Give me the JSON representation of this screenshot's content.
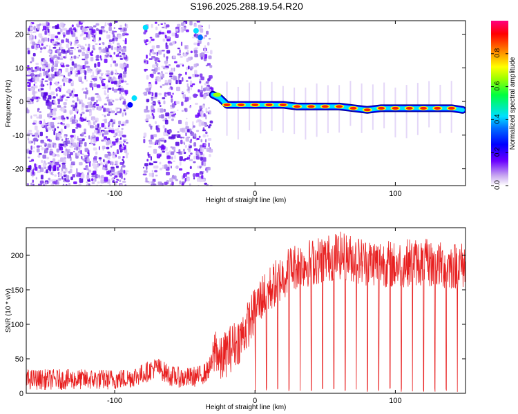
{
  "title": "S196.2025.288.19.54.R20",
  "chart_data": [
    {
      "type": "heatmap",
      "xlabel": "Height of straight line (km)",
      "ylabel": "Frequency (Hz)",
      "xlim": [
        -163,
        150
      ],
      "ylim": [
        -25,
        24
      ],
      "xticks": [
        -100,
        0,
        100
      ],
      "xtick_labels": [
        "-100",
        "0",
        "100"
      ],
      "yticks": [
        20,
        10,
        0,
        -10,
        -20
      ],
      "ytick_labels": [
        "20",
        "10",
        "0",
        "-10",
        "-20"
      ],
      "colorbar": {
        "label": "Normalized spectral amplitude",
        "range": [
          0,
          1
        ],
        "ticks": [
          0,
          0.2,
          0.4,
          0.6,
          0.8
        ],
        "tick_labels": [
          "0.0",
          "0.2",
          "0.4",
          "0.6",
          "0.8"
        ],
        "colors": [
          "#ffffff",
          "#c8a8f0",
          "#6a00ff",
          "#0000ff",
          "#00e0ff",
          "#00ff00",
          "#ffff00",
          "#ff6600",
          "#ff0000",
          "#ff0080"
        ]
      },
      "ridge": {
        "description": "dominant frequency track",
        "x": [
          -30,
          -25,
          -20,
          -10,
          0,
          10,
          20,
          30,
          40,
          50,
          60,
          70,
          80,
          90,
          100,
          110,
          120,
          130,
          140,
          148
        ],
        "y": [
          2,
          1,
          -1,
          -1,
          -1,
          -1,
          -1,
          -1.5,
          -1.5,
          -1.5,
          -1.5,
          -2,
          -2.5,
          -2,
          -2,
          -2,
          -2,
          -2,
          -2,
          -2.5
        ]
      }
    },
    {
      "type": "line",
      "xlabel": "Height of straight line (km)",
      "ylabel": "SNR (10 * v/v)",
      "xlim": [
        -163,
        150
      ],
      "ylim": [
        0,
        240
      ],
      "xticks": [
        -100,
        0,
        100
      ],
      "xtick_labels": [
        "-100",
        "0",
        "100"
      ],
      "yticks": [
        0,
        50,
        100,
        150,
        200
      ],
      "ytick_labels": [
        "0",
        "50",
        "100",
        "150",
        "200"
      ],
      "series": [
        {
          "name": "SNR",
          "color": "#e82020",
          "x": [
            -163,
            -140,
            -120,
            -100,
            -90,
            -80,
            -70,
            -60,
            -50,
            -40,
            -35,
            -30,
            -28,
            -25,
            -20,
            -15,
            -10,
            -5,
            0,
            5,
            10,
            15,
            20,
            25,
            30,
            40,
            50,
            60,
            70,
            80,
            90,
            100,
            110,
            120,
            130,
            140,
            150
          ],
          "y": [
            20,
            20,
            20,
            20,
            22,
            28,
            38,
            25,
            22,
            25,
            30,
            45,
            70,
            45,
            60,
            70,
            80,
            100,
            120,
            140,
            150,
            160,
            170,
            180,
            185,
            190,
            195,
            200,
            195,
            190,
            190,
            185,
            190,
            190,
            185,
            185,
            185
          ]
        }
      ]
    }
  ]
}
